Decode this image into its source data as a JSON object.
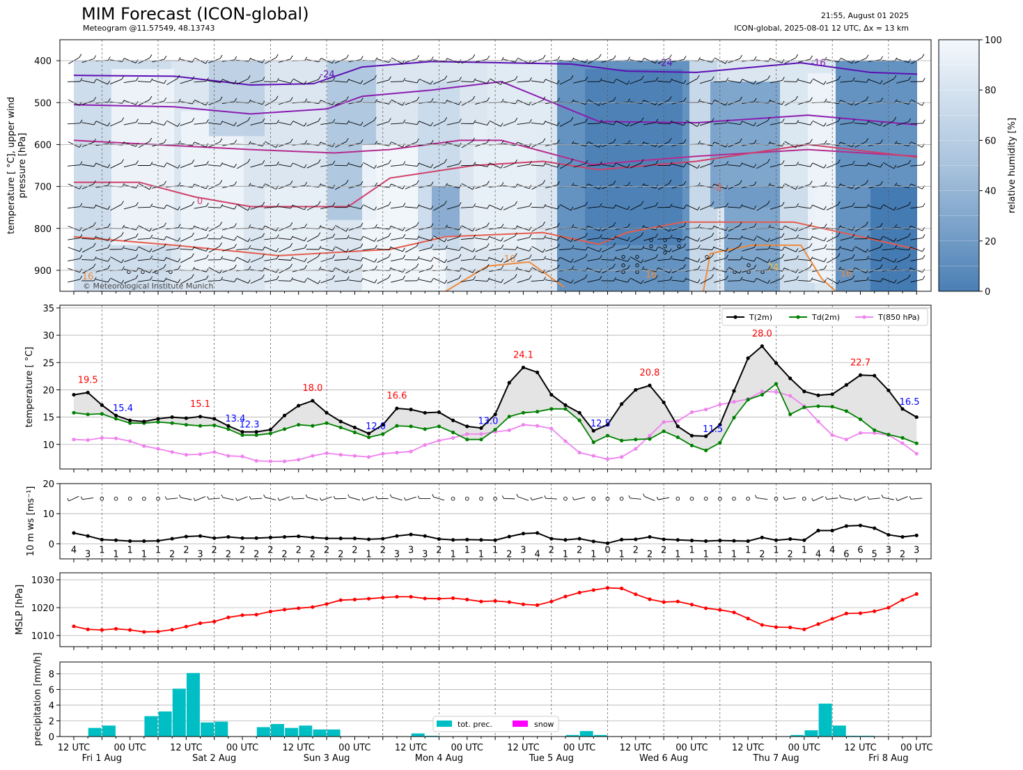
{
  "header": {
    "title": "MIM Forecast (ICON-global)",
    "subtitle": "Meteogram @11.57549, 48.13743",
    "run_time": "21:55, August 01 2025",
    "model_line": "ICON-global, 2025-08-01 12 UTC, Δx = 13 km",
    "copyright": "© Meteorological Institute Munich"
  },
  "time_axis": {
    "tick_labels": [
      "12 UTC",
      "00 UTC",
      "12 UTC",
      "00 UTC",
      "12 UTC",
      "00 UTC",
      "12 UTC",
      "00 UTC",
      "12 UTC",
      "00 UTC",
      "12 UTC",
      "00 UTC",
      "12 UTC",
      "00 UTC",
      "12 UTC",
      "00 UTC"
    ],
    "day_labels": [
      "Fri 1 Aug",
      "Sat 2 Aug",
      "Sun 3 Aug",
      "Mon 4 Aug",
      "Tue 5 Aug",
      "Wed 6 Aug",
      "Thu 7 Aug",
      "Fri 8 Aug"
    ],
    "step_hours": 6
  },
  "colors": {
    "t2m": "#000000",
    "td2m": "#008000",
    "t850": "#ee82ee",
    "mslp": "#ff0000",
    "precip": "#00bfc4",
    "snow": "#ff00ff",
    "extreme_max": "#ff0000",
    "extreme_min": "#0000ff",
    "rh_dark": "#4a7fb5",
    "rh_light": "#f4f8fc"
  },
  "chart_data": [
    {
      "type": "heatmap",
      "name_panel": "upper-air",
      "ylabel": "temperature [$^\\circ$C], upper wind pressure [hPa]",
      "ylabel_lines": [
        "temperature [ °C], upper wind",
        "pressure [hPa]"
      ],
      "yticks": [
        400,
        500,
        600,
        700,
        800,
        900
      ],
      "ylim": [
        950,
        350
      ],
      "colorbar": {
        "label": "relative humidity [%]",
        "ticks": [
          0,
          20,
          40,
          60,
          80,
          100
        ],
        "range": [
          0,
          100
        ]
      },
      "isotherm_labels": [
        "-24",
        "-24",
        "-16",
        "-8",
        "0",
        "8",
        "16",
        "16",
        "16",
        "16",
        "24"
      ]
    },
    {
      "type": "line",
      "name_panel": "temperature",
      "ylabel": "temperature [ °C]",
      "ylim": [
        5.5,
        35.5
      ],
      "yticks": [
        10,
        15,
        20,
        25,
        30,
        35
      ],
      "legend": [
        "T(2m)",
        "Td(2m)",
        "T(850 hPa)"
      ],
      "legend_position": "top-right",
      "series": [
        {
          "name": "T(2m)",
          "values": [
            19.1,
            19.5,
            17.2,
            15.3,
            14.4,
            14.2,
            14.7,
            15.0,
            14.8,
            15.1,
            14.7,
            13.4,
            12.3,
            12.3,
            12.7,
            15.3,
            17.1,
            18.0,
            15.8,
            14.2,
            13.1,
            12.0,
            13.6,
            16.6,
            16.4,
            15.8,
            15.9,
            14.4,
            13.3,
            13.0,
            15.5,
            21.3,
            24.1,
            23.2,
            19.1,
            17.2,
            15.8,
            12.5,
            13.6,
            17.4,
            20.0,
            20.8,
            17.7,
            13.3,
            11.6,
            11.5,
            13.6,
            19.8,
            25.8,
            28.0,
            24.9,
            22.1,
            19.7,
            19.0,
            19.2,
            20.9,
            22.7,
            22.6,
            19.9,
            16.5,
            15.0
          ]
        },
        {
          "name": "Td(2m)",
          "values": [
            15.8,
            15.5,
            15.6,
            14.7,
            13.9,
            13.9,
            14.1,
            13.9,
            13.6,
            13.4,
            13.5,
            12.8,
            11.7,
            11.7,
            12.0,
            12.8,
            13.6,
            13.4,
            13.9,
            13.1,
            12.2,
            11.3,
            11.9,
            13.4,
            13.3,
            12.8,
            13.3,
            12.2,
            10.9,
            10.9,
            12.7,
            15.1,
            15.8,
            16.0,
            16.5,
            16.5,
            14.4,
            10.4,
            11.6,
            10.7,
            10.9,
            11.0,
            12.4,
            11.3,
            9.8,
            8.9,
            10.3,
            14.9,
            18.2,
            19.1,
            21.1,
            15.5,
            16.8,
            17.0,
            16.9,
            16.1,
            14.6,
            12.6,
            11.8,
            11.2,
            10.2
          ]
        },
        {
          "name": "T(850 hPa)",
          "values": [
            10.9,
            10.8,
            11.2,
            11.1,
            10.6,
            9.7,
            9.2,
            8.6,
            8.1,
            8.2,
            8.6,
            7.9,
            7.8,
            7.0,
            6.9,
            6.9,
            7.2,
            7.9,
            8.4,
            8.1,
            7.9,
            7.7,
            8.3,
            8.5,
            8.7,
            9.9,
            10.7,
            11.2,
            11.9,
            11.9,
            12.3,
            12.6,
            13.6,
            13.4,
            12.9,
            10.6,
            8.5,
            7.9,
            7.3,
            7.7,
            9.2,
            11.6,
            14.1,
            14.3,
            15.9,
            16.4,
            17.3,
            17.8,
            18.3,
            19.7,
            19.6,
            18.9,
            17.0,
            14.2,
            11.7,
            10.9,
            12.1,
            12.1,
            11.7,
            10.2,
            8.3
          ]
        }
      ],
      "annotations_max": [
        {
          "label": "19.5",
          "index": 1
        },
        {
          "label": "15.1",
          "index": 9
        },
        {
          "label": "18.0",
          "index": 17
        },
        {
          "label": "16.6",
          "index": 23
        },
        {
          "label": "24.1",
          "index": 32
        },
        {
          "label": "20.8",
          "index": 41
        },
        {
          "label": "28.0",
          "index": 49
        },
        {
          "label": "22.7",
          "index": 56
        }
      ],
      "annotations_min": [
        {
          "label": "15.4",
          "index": 3
        },
        {
          "label": "13.4",
          "index": 11
        },
        {
          "label": "12.3",
          "index": 12
        },
        {
          "label": "12.0",
          "index": 21
        },
        {
          "label": "13.0",
          "index": 29
        },
        {
          "label": "12.5",
          "index": 37
        },
        {
          "label": "11.5",
          "index": 45
        },
        {
          "label": "16.5",
          "index": 59
        }
      ]
    },
    {
      "type": "line",
      "name_panel": "wind",
      "ylabel": "10 m ws [ms⁻¹]",
      "ylim": [
        -5,
        20
      ],
      "yticks": [
        0,
        10,
        20
      ],
      "series": [
        {
          "name": "ws",
          "values": [
            3.6,
            2.6,
            1.4,
            1.2,
            0.9,
            0.9,
            1.0,
            1.7,
            2.4,
            2.6,
            1.9,
            2.3,
            1.9,
            1.9,
            2.1,
            2.3,
            2.5,
            2.1,
            1.8,
            1.8,
            1.8,
            1.5,
            1.7,
            2.6,
            3.1,
            2.6,
            1.6,
            1.3,
            1.4,
            1.3,
            1.2,
            2.4,
            3.4,
            3.6,
            1.7,
            1.3,
            1.7,
            0.8,
            0.2,
            1.4,
            1.5,
            2.3,
            1.5,
            1.3,
            1.1,
            0.9,
            1.1,
            1.0,
            0.9,
            2.1,
            1.2,
            1.6,
            1.2,
            4.4,
            4.4,
            5.9,
            6.1,
            5.2,
            3.0,
            2.3,
            2.8
          ]
        }
      ],
      "point_labels": [
        "4",
        "3",
        "1",
        "1",
        "1",
        "1",
        "1",
        "2",
        "2",
        "3",
        "2",
        "2",
        "2",
        "2",
        "2",
        "2",
        "2",
        "2",
        "2",
        "2",
        "2",
        "1",
        "2",
        "3",
        "3",
        "3",
        "2",
        "1",
        "1",
        "1",
        "1",
        "2",
        "3",
        "4",
        "2",
        "1",
        "2",
        "1",
        "0",
        "1",
        "2",
        "2",
        "2",
        "1",
        "1",
        "1",
        "1",
        "1",
        "1",
        "2",
        "1",
        "2",
        "1",
        "4",
        "4",
        "6",
        "6",
        "5",
        "3",
        "2",
        "3"
      ]
    },
    {
      "type": "line",
      "name_panel": "mslp",
      "ylabel": "MSLP [hPa]",
      "ylim": [
        1006,
        1032.5
      ],
      "yticks": [
        1010,
        1020,
        1030
      ],
      "series": [
        {
          "name": "MSLP",
          "values": [
            1013.3,
            1012.2,
            1012.0,
            1012.4,
            1012.0,
            1011.3,
            1011.4,
            1012.1,
            1013.2,
            1014.4,
            1015.0,
            1016.5,
            1017.3,
            1017.5,
            1018.6,
            1019.3,
            1019.8,
            1020.2,
            1021.3,
            1022.7,
            1022.9,
            1023.2,
            1023.6,
            1023.9,
            1023.9,
            1023.3,
            1023.2,
            1023.4,
            1022.9,
            1022.2,
            1022.4,
            1022.0,
            1021.2,
            1020.9,
            1022.2,
            1024.0,
            1025.4,
            1026.3,
            1027.1,
            1026.9,
            1024.8,
            1023.0,
            1022.0,
            1022.2,
            1021.1,
            1019.8,
            1019.2,
            1018.3,
            1016.1,
            1013.8,
            1013.0,
            1012.9,
            1012.2,
            1014.1,
            1016.0,
            1017.9,
            1018.0,
            1018.7,
            1020.0,
            1022.8,
            1024.9
          ]
        }
      ]
    },
    {
      "type": "bar",
      "name_panel": "precipitation",
      "ylabel": "precipitation [mm/h]",
      "ylim": [
        0,
        9.5
      ],
      "yticks": [
        0,
        2,
        4,
        6,
        8
      ],
      "legend": [
        "tot. prec.",
        "snow"
      ],
      "legend_position": "bottom-center",
      "series": [
        {
          "name": "tot. prec.",
          "values": [
            0,
            1.1,
            1.4,
            0,
            0,
            2.6,
            3.2,
            6.1,
            8.1,
            1.8,
            1.9,
            0,
            0,
            1.2,
            1.6,
            1.1,
            1.4,
            0.9,
            0.9,
            0,
            0,
            0,
            0,
            0,
            0.4,
            0.1,
            0,
            0,
            0,
            0,
            0,
            0,
            0,
            0,
            0,
            0.2,
            0.7,
            0.2,
            0,
            0,
            0,
            0,
            0,
            0,
            0,
            0,
            0,
            0,
            0,
            0,
            0,
            0.2,
            0.8,
            4.2,
            1.4,
            0.1,
            0.1,
            0,
            0,
            0,
            0
          ]
        },
        {
          "name": "snow",
          "values": [
            0,
            0,
            0,
            0,
            0,
            0,
            0,
            0,
            0,
            0,
            0,
            0,
            0,
            0,
            0,
            0,
            0,
            0,
            0,
            0,
            0,
            0,
            0,
            0,
            0,
            0,
            0,
            0,
            0,
            0,
            0,
            0,
            0,
            0,
            0,
            0,
            0,
            0,
            0,
            0,
            0,
            0,
            0,
            0,
            0,
            0,
            0,
            0,
            0,
            0,
            0,
            0,
            0,
            0,
            0,
            0,
            0,
            0,
            0,
            0,
            0
          ]
        }
      ]
    }
  ]
}
